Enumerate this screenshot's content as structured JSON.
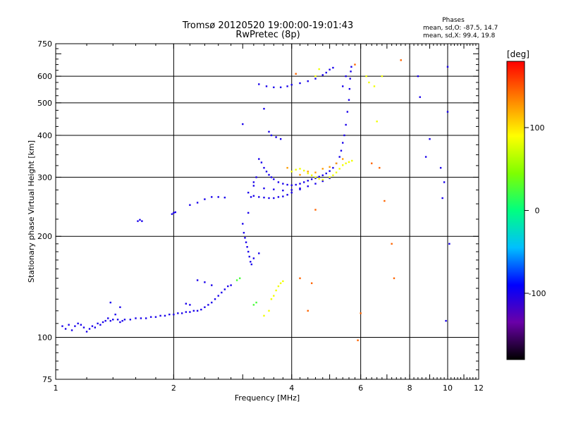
{
  "chart_data": {
    "type": "scatter",
    "title": "Tromsø 20120520 19:00:00-19:01:43",
    "subtitle": "RwPretec (8p)",
    "xlabel": "Frequency [MHz]",
    "ylabel": "Stationary phase Virtual Height [km]",
    "x_scale": "log",
    "y_scale": "log",
    "xlim": [
      1,
      12
    ],
    "ylim": [
      75,
      750
    ],
    "x_ticks": [
      1,
      2,
      4,
      6,
      8,
      10,
      12
    ],
    "x_tick_labels": [
      "1",
      "2",
      "4",
      "6",
      "8",
      "10",
      "12"
    ],
    "x_grid": [
      2,
      4,
      6,
      8,
      10
    ],
    "y_ticks": [
      75,
      100,
      200,
      300,
      400,
      500,
      600,
      750
    ],
    "y_tick_labels": [
      "75",
      "100",
      "200",
      "300",
      "400",
      "500",
      "600",
      "750"
    ],
    "y_grid": [
      100,
      200,
      300,
      400,
      500,
      600
    ],
    "grid": true,
    "phases": {
      "heading": "Phases",
      "line_o": "mean, sd,O: -87.5, 14.7",
      "line_x": "mean, sd,X:  99.4, 19.8"
    },
    "colorbar": {
      "unit": "[deg]",
      "min": -180,
      "max": 180,
      "ticks": [
        100,
        0,
        -100
      ],
      "tick_labels": [
        "100",
        "0",
        "-100"
      ],
      "colormap": "rainbow",
      "colors": [
        "#000000",
        "#6a00a8",
        "#0000ff",
        "#00bfff",
        "#00ff80",
        "#7fff00",
        "#ffff00",
        "#ff8000",
        "#ff0000"
      ]
    },
    "series": [
      {
        "phase": -100,
        "points": [
          [
            1.04,
            108
          ],
          [
            1.06,
            106
          ],
          [
            1.08,
            109
          ],
          [
            1.1,
            105
          ],
          [
            1.12,
            108
          ],
          [
            1.14,
            110
          ],
          [
            1.16,
            109
          ],
          [
            1.18,
            107
          ],
          [
            1.2,
            104
          ],
          [
            1.22,
            106
          ],
          [
            1.24,
            108
          ],
          [
            1.26,
            107
          ],
          [
            1.28,
            110
          ],
          [
            1.3,
            109
          ],
          [
            1.32,
            111
          ],
          [
            1.34,
            112
          ],
          [
            1.36,
            114
          ],
          [
            1.38,
            112
          ],
          [
            1.4,
            113
          ],
          [
            1.42,
            117
          ],
          [
            1.44,
            113
          ],
          [
            1.46,
            111
          ],
          [
            1.48,
            112
          ],
          [
            1.5,
            113
          ],
          [
            1.55,
            113
          ],
          [
            1.6,
            114
          ],
          [
            1.65,
            114
          ],
          [
            1.7,
            114
          ],
          [
            1.75,
            115
          ],
          [
            1.8,
            115
          ],
          [
            1.85,
            116
          ],
          [
            1.9,
            116
          ],
          [
            1.95,
            117
          ],
          [
            2.0,
            117
          ],
          [
            2.05,
            118
          ],
          [
            2.1,
            118
          ],
          [
            2.15,
            119
          ],
          [
            2.2,
            119
          ],
          [
            2.25,
            120
          ],
          [
            2.3,
            120
          ],
          [
            2.35,
            121
          ],
          [
            2.4,
            123
          ],
          [
            2.45,
            125
          ],
          [
            2.5,
            127
          ],
          [
            2.55,
            130
          ],
          [
            2.6,
            133
          ],
          [
            2.65,
            136
          ],
          [
            2.7,
            139
          ],
          [
            2.75,
            142
          ],
          [
            2.8,
            143
          ],
          [
            2.3,
            148
          ],
          [
            2.4,
            146
          ],
          [
            2.5,
            143
          ],
          [
            2.2,
            125
          ],
          [
            2.15,
            126
          ],
          [
            1.38,
            127
          ],
          [
            1.46,
            123
          ],
          [
            1.62,
            222
          ],
          [
            1.64,
            224
          ],
          [
            1.66,
            222
          ],
          [
            1.98,
            233
          ],
          [
            2.0,
            235
          ],
          [
            2.02,
            236
          ],
          [
            2.2,
            248
          ],
          [
            2.3,
            252
          ],
          [
            2.4,
            258
          ],
          [
            2.5,
            262
          ],
          [
            2.6,
            262
          ],
          [
            2.7,
            261
          ],
          [
            3.0,
            218
          ],
          [
            3.02,
            205
          ],
          [
            3.04,
            198
          ],
          [
            3.06,
            192
          ],
          [
            3.08,
            186
          ],
          [
            3.1,
            180
          ],
          [
            3.12,
            174
          ],
          [
            3.14,
            168
          ],
          [
            3.16,
            165
          ],
          [
            3.2,
            172
          ],
          [
            3.3,
            178
          ],
          [
            3.1,
            235
          ],
          [
            3.15,
            262
          ],
          [
            3.2,
            290
          ],
          [
            3.25,
            300
          ],
          [
            3.3,
            340
          ],
          [
            3.35,
            332
          ],
          [
            3.4,
            320
          ],
          [
            3.45,
            312
          ],
          [
            3.5,
            305
          ],
          [
            3.55,
            300
          ],
          [
            3.6,
            296
          ],
          [
            3.7,
            290
          ],
          [
            3.8,
            287
          ],
          [
            3.9,
            285
          ],
          [
            4.0,
            284
          ],
          [
            4.1,
            285
          ],
          [
            4.2,
            287
          ],
          [
            4.3,
            290
          ],
          [
            4.4,
            293
          ],
          [
            4.5,
            296
          ],
          [
            4.6,
            298
          ],
          [
            4.7,
            301
          ],
          [
            4.8,
            304
          ],
          [
            4.9,
            308
          ],
          [
            5.0,
            313
          ],
          [
            5.1,
            320
          ],
          [
            5.2,
            330
          ],
          [
            5.3,
            345
          ],
          [
            5.35,
            360
          ],
          [
            5.4,
            380
          ],
          [
            5.45,
            400
          ],
          [
            5.5,
            430
          ],
          [
            5.55,
            470
          ],
          [
            5.6,
            510
          ],
          [
            5.62,
            550
          ],
          [
            5.64,
            590
          ],
          [
            5.66,
            620
          ],
          [
            5.68,
            640
          ],
          [
            5.5,
            600
          ],
          [
            5.4,
            560
          ],
          [
            3.1,
            270
          ],
          [
            3.2,
            264
          ],
          [
            3.3,
            262
          ],
          [
            3.4,
            261
          ],
          [
            3.5,
            260
          ],
          [
            3.6,
            260
          ],
          [
            3.7,
            262
          ],
          [
            3.8,
            263
          ],
          [
            3.9,
            266
          ],
          [
            4.0,
            270
          ],
          [
            4.2,
            276
          ],
          [
            4.4,
            282
          ],
          [
            4.6,
            287
          ],
          [
            4.8,
            292
          ],
          [
            5.0,
            298
          ],
          [
            3.2,
            283
          ],
          [
            3.4,
            278
          ],
          [
            3.6,
            276
          ],
          [
            3.8,
            274
          ],
          [
            4.0,
            275
          ],
          [
            4.2,
            278
          ],
          [
            3.5,
            410
          ],
          [
            3.55,
            400
          ],
          [
            3.65,
            395
          ],
          [
            3.75,
            390
          ],
          [
            3.3,
            568
          ],
          [
            3.45,
            560
          ],
          [
            3.6,
            556
          ],
          [
            3.75,
            556
          ],
          [
            3.9,
            560
          ],
          [
            4.0,
            566
          ],
          [
            4.2,
            572
          ],
          [
            4.4,
            580
          ],
          [
            4.6,
            590
          ],
          [
            4.8,
            605
          ],
          [
            4.9,
            615
          ],
          [
            5.0,
            628
          ],
          [
            5.1,
            636
          ],
          [
            3.0,
            432
          ],
          [
            3.4,
            480
          ],
          [
            8.4,
            600
          ],
          [
            8.5,
            520
          ],
          [
            9.0,
            390
          ],
          [
            9.6,
            320
          ],
          [
            9.8,
            290
          ],
          [
            9.9,
            112
          ],
          [
            10.0,
            640
          ],
          [
            9.7,
            260
          ],
          [
            10.1,
            190
          ],
          [
            10.0,
            470
          ],
          [
            8.8,
            345
          ]
        ]
      },
      {
        "phase": 25,
        "points": [
          [
            2.9,
            148
          ],
          [
            2.95,
            150
          ],
          [
            3.2,
            125
          ],
          [
            3.25,
            127
          ]
        ]
      },
      {
        "phase": 85,
        "points": [
          [
            3.55,
            130
          ],
          [
            3.6,
            133
          ],
          [
            3.65,
            138
          ],
          [
            3.7,
            142
          ],
          [
            3.75,
            145
          ],
          [
            3.8,
            147
          ],
          [
            4.0,
            312
          ],
          [
            4.1,
            316
          ],
          [
            4.2,
            318
          ],
          [
            4.3,
            314
          ],
          [
            4.4,
            308
          ],
          [
            4.5,
            304
          ],
          [
            4.6,
            300
          ],
          [
            4.7,
            297
          ],
          [
            4.8,
            295
          ],
          [
            5.0,
            300
          ],
          [
            5.1,
            304
          ],
          [
            5.2,
            310
          ],
          [
            5.3,
            318
          ],
          [
            5.4,
            326
          ],
          [
            5.5,
            330
          ],
          [
            5.6,
            333
          ],
          [
            5.7,
            336
          ],
          [
            3.4,
            116
          ],
          [
            3.5,
            120
          ],
          [
            6.2,
            600
          ],
          [
            6.3,
            575
          ],
          [
            6.5,
            560
          ],
          [
            6.6,
            440
          ],
          [
            6.8,
            600
          ],
          [
            4.6,
            600
          ],
          [
            4.7,
            630
          ]
        ]
      },
      {
        "phase": 145,
        "points": [
          [
            4.5,
            145
          ],
          [
            4.2,
            150
          ],
          [
            6.0,
            118
          ],
          [
            5.9,
            98
          ],
          [
            4.6,
            240
          ],
          [
            6.4,
            330
          ],
          [
            6.9,
            255
          ],
          [
            4.1,
            610
          ],
          [
            5.8,
            650
          ],
          [
            6.7,
            320
          ],
          [
            7.3,
            150
          ],
          [
            7.6,
            670
          ],
          [
            7.2,
            190
          ],
          [
            4.4,
            120
          ]
        ]
      },
      {
        "phase": 125,
        "points": [
          [
            4.6,
            310
          ],
          [
            4.8,
            318
          ],
          [
            5.0,
            322
          ],
          [
            5.2,
            330
          ],
          [
            5.4,
            340
          ],
          [
            4.2,
            305
          ],
          [
            4.4,
            312
          ],
          [
            3.9,
            320
          ]
        ]
      }
    ]
  }
}
